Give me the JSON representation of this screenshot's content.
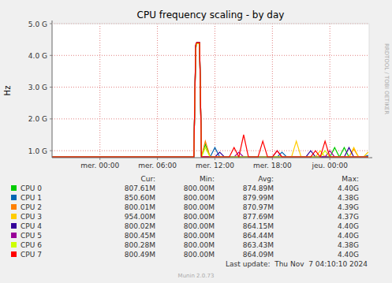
{
  "chart_data": {
    "type": "line",
    "title": "CPU frequency scaling - by day",
    "y_label": "Hz",
    "watermark": "RRDTOOL / TOBI OETIKER",
    "footer": "Munin 2.0.73",
    "last_update": "Last update:  Thu Nov  7 04:10:10 2024",
    "legend_columns": [
      "Cur:",
      "Min:",
      "Avg:",
      "Max:"
    ],
    "grid": true,
    "xlim": [
      -5,
      28.1
    ],
    "xticks": [
      {
        "value": 0,
        "label": "mer. 00:00"
      },
      {
        "value": 6,
        "label": "mer. 06:00"
      },
      {
        "value": 12,
        "label": "mer. 12:00"
      },
      {
        "value": 18,
        "label": "mer. 18:00"
      },
      {
        "value": 24,
        "label": "jeu. 00:00"
      }
    ],
    "ylim": [
      780000000,
      5000000000
    ],
    "yticks": [
      {
        "value": 1000000000,
        "label": "1.0 G"
      },
      {
        "value": 2000000000,
        "label": "2.0 G"
      },
      {
        "value": 3000000000,
        "label": "3.0 G"
      },
      {
        "value": 4000000000,
        "label": "4.0 G"
      },
      {
        "value": 5000000000,
        "label": "5.0 G"
      }
    ],
    "x": [
      -5,
      9.8,
      10.0,
      10.1,
      10.4,
      10.6,
      11.0,
      11.5,
      12.0,
      12.5,
      13.0,
      13.5,
      14.0,
      14.5,
      15.0,
      15.5,
      16.0,
      16.5,
      17.0,
      17.5,
      18.0,
      18.5,
      19.0,
      19.5,
      20.0,
      20.5,
      21.0,
      21.5,
      22.0,
      22.5,
      23.0,
      23.5,
      24.0,
      24.5,
      25.0,
      25.5,
      26.0,
      26.5,
      27.0,
      27.5,
      28.0
    ],
    "series": [
      {
        "name": "CPU 0",
        "color": "#00cc00",
        "stats": [
          "807.61M",
          "800.00M",
          "874.89M",
          "4.40G"
        ],
        "values": [
          800000000,
          800000000,
          4300000000,
          4400000000,
          4400000000,
          800000000,
          1200000000,
          800000000,
          800000000,
          800000000,
          800000000,
          800000000,
          800000000,
          800000000,
          800000000,
          800000000,
          800000000,
          800000000,
          800000000,
          800000000,
          800000000,
          800000000,
          800000000,
          800000000,
          800000000,
          800000000,
          800000000,
          800000000,
          800000000,
          800000000,
          800000000,
          800000000,
          800000000,
          1100000000,
          800000000,
          1100000000,
          800000000,
          800000000,
          800000000,
          800000000,
          807610000
        ]
      },
      {
        "name": "CPU 1",
        "color": "#0066b3",
        "stats": [
          "850.60M",
          "800.00M",
          "879.99M",
          "4.38G"
        ],
        "values": [
          800000000,
          800000000,
          4200000000,
          4380000000,
          4380000000,
          800000000,
          800000000,
          800000000,
          1100000000,
          800000000,
          800000000,
          800000000,
          800000000,
          800000000,
          800000000,
          800000000,
          800000000,
          800000000,
          800000000,
          800000000,
          800000000,
          800000000,
          950000000,
          800000000,
          800000000,
          800000000,
          800000000,
          800000000,
          800000000,
          800000000,
          800000000,
          800000000,
          800000000,
          800000000,
          800000000,
          800000000,
          800000000,
          800000000,
          800000000,
          800000000,
          850600000
        ]
      },
      {
        "name": "CPU 2",
        "color": "#ff8000",
        "stats": [
          "800.01M",
          "800.00M",
          "870.97M",
          "4.39G"
        ],
        "values": [
          800000000,
          800000000,
          4300000000,
          4390000000,
          4390000000,
          800000000,
          1300000000,
          800000000,
          800000000,
          800000000,
          800000000,
          800000000,
          800000000,
          800000000,
          800000000,
          800000000,
          800000000,
          800000000,
          800000000,
          800000000,
          800000000,
          800000000,
          800000000,
          800000000,
          800000000,
          800000000,
          800000000,
          800000000,
          800000000,
          800000000,
          800000000,
          800000000,
          800000000,
          800000000,
          800000000,
          800000000,
          800000000,
          1050000000,
          800000000,
          800000000,
          800010000
        ]
      },
      {
        "name": "CPU 3",
        "color": "#ffcc00",
        "stats": [
          "954.00M",
          "800.00M",
          "877.69M",
          "4.37G"
        ],
        "values": [
          800000000,
          800000000,
          4250000000,
          4370000000,
          4370000000,
          800000000,
          800000000,
          800000000,
          800000000,
          800000000,
          800000000,
          800000000,
          800000000,
          800000000,
          800000000,
          800000000,
          800000000,
          800000000,
          800000000,
          800000000,
          800000000,
          800000000,
          800000000,
          800000000,
          800000000,
          1300000000,
          800000000,
          800000000,
          800000000,
          800000000,
          1000000000,
          800000000,
          800000000,
          800000000,
          800000000,
          800000000,
          800000000,
          1100000000,
          800000000,
          800000000,
          954000000
        ]
      },
      {
        "name": "CPU 4",
        "color": "#330099",
        "stats": [
          "800.02M",
          "800.00M",
          "864.15M",
          "4.40G"
        ],
        "values": [
          800000000,
          800000000,
          4300000000,
          4400000000,
          4400000000,
          800000000,
          800000000,
          800000000,
          800000000,
          950000000,
          800000000,
          800000000,
          800000000,
          800000000,
          800000000,
          800000000,
          800000000,
          800000000,
          800000000,
          800000000,
          800000000,
          800000000,
          800000000,
          800000000,
          800000000,
          800000000,
          800000000,
          800000000,
          1000000000,
          800000000,
          800000000,
          800000000,
          800000000,
          800000000,
          800000000,
          800000000,
          1100000000,
          800000000,
          800000000,
          800000000,
          800020000
        ]
      },
      {
        "name": "CPU 5",
        "color": "#990099",
        "stats": [
          "800.45M",
          "800.00M",
          "864.44M",
          "4.40G"
        ],
        "values": [
          800000000,
          800000000,
          4300000000,
          4400000000,
          4400000000,
          800000000,
          800000000,
          800000000,
          800000000,
          800000000,
          800000000,
          800000000,
          800000000,
          950000000,
          800000000,
          800000000,
          800000000,
          800000000,
          800000000,
          800000000,
          800000000,
          1000000000,
          800000000,
          800000000,
          800000000,
          800000000,
          800000000,
          800000000,
          800000000,
          800000000,
          800000000,
          800000000,
          1000000000,
          800000000,
          800000000,
          800000000,
          800000000,
          800000000,
          800000000,
          800000000,
          800450000
        ]
      },
      {
        "name": "CPU 6",
        "color": "#ccff00",
        "stats": [
          "800.28M",
          "800.00M",
          "863.43M",
          "4.38G"
        ],
        "values": [
          800000000,
          800000000,
          4200000000,
          4380000000,
          4380000000,
          800000000,
          1100000000,
          800000000,
          800000000,
          800000000,
          800000000,
          800000000,
          800000000,
          800000000,
          800000000,
          800000000,
          800000000,
          800000000,
          800000000,
          800000000,
          800000000,
          800000000,
          800000000,
          800000000,
          800000000,
          800000000,
          800000000,
          800000000,
          800000000,
          800000000,
          800000000,
          1000000000,
          800000000,
          800000000,
          800000000,
          800000000,
          800000000,
          800000000,
          800000000,
          800000000,
          800280000
        ]
      },
      {
        "name": "CPU 7",
        "color": "#ff0000",
        "stats": [
          "800.49M",
          "800.00M",
          "864.09M",
          "4.40G"
        ],
        "values": [
          800000000,
          800000000,
          4350000000,
          4400000000,
          4400000000,
          800000000,
          800000000,
          800000000,
          800000000,
          800000000,
          800000000,
          800000000,
          1100000000,
          800000000,
          1500000000,
          800000000,
          800000000,
          800000000,
          1300000000,
          800000000,
          800000000,
          1000000000,
          800000000,
          800000000,
          800000000,
          800000000,
          800000000,
          800000000,
          800000000,
          1000000000,
          800000000,
          1300000000,
          800000000,
          800000000,
          800000000,
          800000000,
          800000000,
          800000000,
          800000000,
          800000000,
          800490000
        ]
      }
    ]
  }
}
